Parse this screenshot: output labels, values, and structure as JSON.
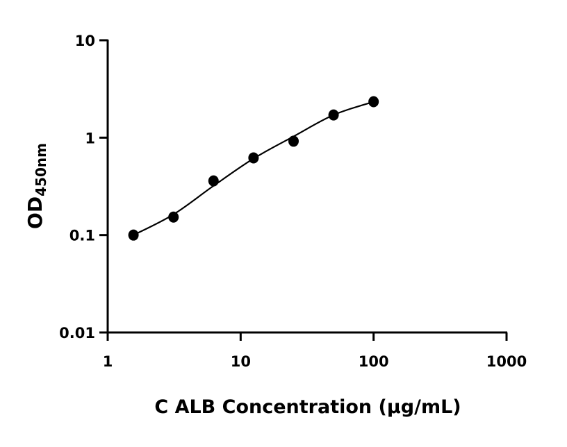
{
  "chart_data": {
    "type": "scatter",
    "title": "",
    "xlabel": "C ALB Concentration (μg/mL)",
    "ylabel_main": "OD",
    "ylabel_sub": "450nm",
    "xscale": "log",
    "yscale": "log",
    "xlim": [
      1,
      1000
    ],
    "ylim": [
      0.01,
      10
    ],
    "xticks": [
      1,
      10,
      100,
      1000
    ],
    "xtick_labels": [
      "1",
      "10",
      "100",
      "1000"
    ],
    "yticks": [
      0.01,
      0.1,
      1,
      10
    ],
    "ytick_labels": [
      "0.01",
      "0.1",
      "1",
      "10"
    ],
    "grid": false,
    "legend": "none",
    "colors": {
      "points": "#000000",
      "curve": "#000000"
    },
    "points": {
      "x": [
        1.5625,
        3.125,
        6.25,
        12.5,
        25,
        50,
        100
      ],
      "y": [
        0.1,
        0.153,
        0.36,
        0.62,
        0.92,
        1.71,
        2.34
      ]
    },
    "fit_curve": {
      "x": [
        1.5625,
        3.125,
        6.25,
        12.5,
        25,
        50,
        100
      ],
      "y": [
        0.1,
        0.163,
        0.32,
        0.61,
        1.03,
        1.71,
        2.34
      ]
    }
  }
}
